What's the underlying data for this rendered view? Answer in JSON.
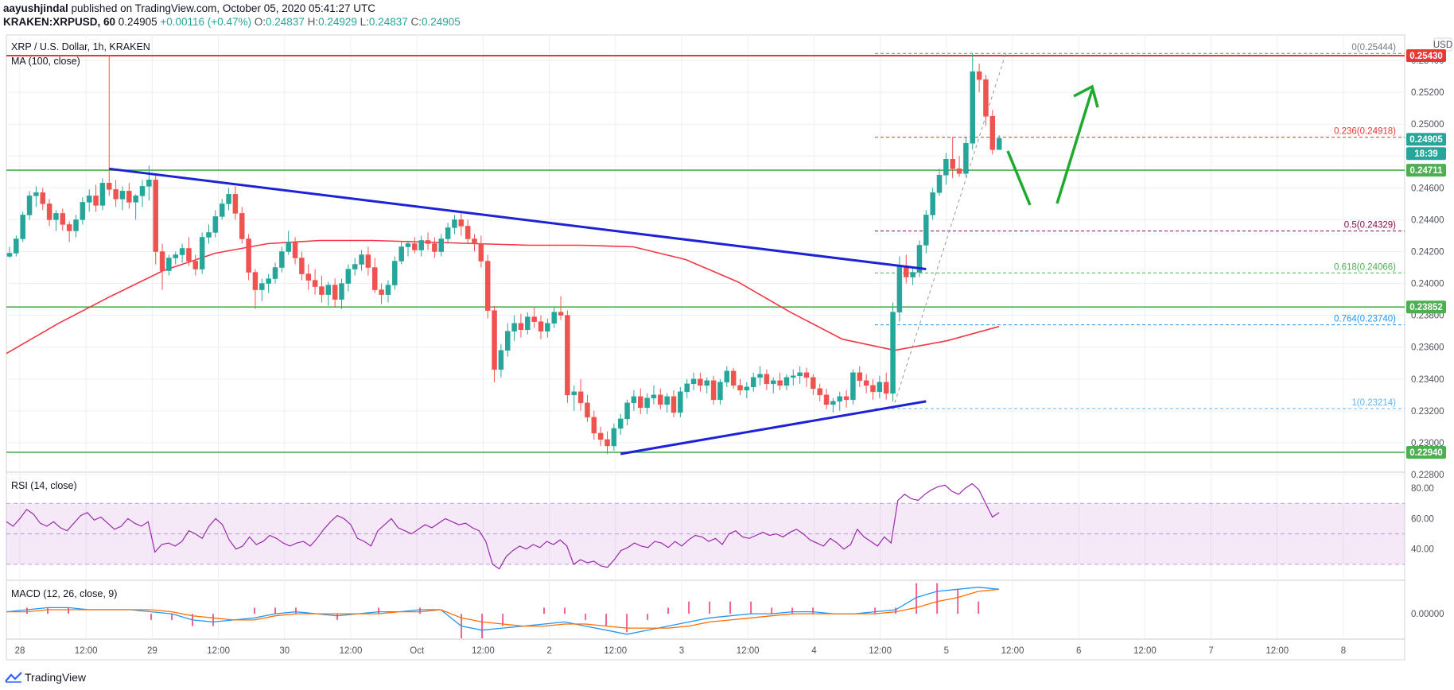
{
  "header": {
    "author": "aayushjindal",
    "published": "published on TradingView.com, October 05, 2020 05:41:27 UTC",
    "symbol": "KRAKEN:XRPUSD, 60",
    "last": "0.24905",
    "change": "+0.00116 (+0.47%)",
    "ohlc": [
      {
        "k": "O:",
        "v": "0.24837"
      },
      {
        "k": "H:",
        "v": "0.24929"
      },
      {
        "k": "L:",
        "v": "0.24837"
      },
      {
        "k": "C:",
        "v": "0.24905"
      }
    ]
  },
  "pane_titles": {
    "main": "XRP / U.S. Dollar, 1h, KRAKEN",
    "ma": "MA (100, close)",
    "rsi": "RSI (14, close)",
    "macd": "MACD (12, 26, close, 9)"
  },
  "currency_button": "USD",
  "countdown": "18:39",
  "footer_brand": "TradingView",
  "chart_data": {
    "type": "candlestick",
    "symbol": "XRP / U.S. Dollar",
    "timeframe": "1h",
    "x_ticks": [
      "28",
      "12:00",
      "29",
      "12:00",
      "30",
      "12:00",
      "Oct",
      "12:00",
      "2",
      "12:00",
      "3",
      "12:00",
      "4",
      "12:00",
      "5",
      "12:00",
      "6",
      "12:00",
      "7",
      "12:00",
      "8"
    ],
    "y_ticks": [
      "0.25400",
      "0.25200",
      "0.25000",
      "0.24800",
      "0.24600",
      "0.24400",
      "0.24200",
      "0.24000",
      "0.23800",
      "0.23600",
      "0.23400",
      "0.23200",
      "0.23000",
      "0.22800"
    ],
    "y_range": [
      0.2282,
      0.2556
    ],
    "price_tags": [
      {
        "value": "0.25430",
        "color": "#e53935"
      },
      {
        "value": "0.24905",
        "color": "#26a69a"
      },
      {
        "value": "0.24711",
        "color": "#4caf50"
      },
      {
        "value": "0.23852",
        "color": "#4caf50"
      },
      {
        "value": "0.22940",
        "color": "#4caf50"
      }
    ],
    "horizontal_lines": [
      {
        "price": 0.2543,
        "color": "#e53935"
      },
      {
        "price": 0.24711,
        "color": "#4caf50"
      },
      {
        "price": 0.23852,
        "color": "#4caf50"
      },
      {
        "price": 0.2294,
        "color": "#4caf50"
      }
    ],
    "fibonacci": [
      {
        "ratio": "0",
        "price": "0.25444",
        "label": "0(0.25444)",
        "color": "#787b86"
      },
      {
        "ratio": "0.236",
        "price": "0.24918",
        "label": "0.236(0.24918)",
        "color": "#e53935"
      },
      {
        "ratio": "0.5",
        "price": "0.24329",
        "label": "0.5(0.24329)",
        "color": "#880e4f"
      },
      {
        "ratio": "0.618",
        "price": "0.24066",
        "label": "0.618(0.24066)",
        "color": "#4caf50"
      },
      {
        "ratio": "0.764",
        "price": "0.23740",
        "label": "0.764(0.23740)",
        "color": "#2196f3"
      },
      {
        "ratio": "1",
        "price": "0.23214",
        "label": "1(0.23214)",
        "color": "#64b5f6"
      }
    ],
    "trendlines": [
      {
        "name": "bearish trend line",
        "from": {
          "bar": 15,
          "price": 0.2472
        },
        "to": {
          "bar": 138,
          "price": 0.2409
        }
      },
      {
        "name": "bullish trend line",
        "from": {
          "bar": 92,
          "price": 0.2293
        },
        "to": {
          "bar": 138,
          "price": 0.2326
        }
      }
    ],
    "candles": [
      [
        0.2417,
        0.2423,
        0.2416,
        0.2419
      ],
      [
        0.2419,
        0.243,
        0.2417,
        0.2428
      ],
      [
        0.2428,
        0.2445,
        0.2426,
        0.2443
      ],
      [
        0.2443,
        0.2458,
        0.244,
        0.2455
      ],
      [
        0.2455,
        0.2461,
        0.2448,
        0.2457
      ],
      [
        0.2457,
        0.246,
        0.2446,
        0.245
      ],
      [
        0.245,
        0.2453,
        0.2436,
        0.244
      ],
      [
        0.244,
        0.2446,
        0.2433,
        0.2444
      ],
      [
        0.2444,
        0.2447,
        0.2433,
        0.2437
      ],
      [
        0.2437,
        0.2439,
        0.2426,
        0.2433
      ],
      [
        0.2433,
        0.2443,
        0.2429,
        0.244
      ],
      [
        0.244,
        0.2454,
        0.2437,
        0.2451
      ],
      [
        0.2451,
        0.2459,
        0.2445,
        0.2455
      ],
      [
        0.2455,
        0.2462,
        0.2445,
        0.2449
      ],
      [
        0.2449,
        0.2466,
        0.2446,
        0.2463
      ],
      [
        0.2463,
        0.2543,
        0.2455,
        0.2459
      ],
      [
        0.2459,
        0.2465,
        0.2448,
        0.2453
      ],
      [
        0.2453,
        0.2461,
        0.2446,
        0.2458
      ],
      [
        0.2458,
        0.2463,
        0.2447,
        0.2451
      ],
      [
        0.2451,
        0.2456,
        0.244,
        0.2455
      ],
      [
        0.2455,
        0.2465,
        0.2448,
        0.2461
      ],
      [
        0.2461,
        0.2474,
        0.2452,
        0.2465
      ],
      [
        0.2465,
        0.2468,
        0.2412,
        0.242
      ],
      [
        0.242,
        0.2425,
        0.2396,
        0.2408
      ],
      [
        0.2408,
        0.2418,
        0.2405,
        0.2416
      ],
      [
        0.2416,
        0.242,
        0.2412,
        0.2418
      ],
      [
        0.2418,
        0.2425,
        0.2413,
        0.2422
      ],
      [
        0.2422,
        0.2429,
        0.2411,
        0.2414
      ],
      [
        0.2414,
        0.2418,
        0.2405,
        0.2409
      ],
      [
        0.2409,
        0.2432,
        0.2406,
        0.2429
      ],
      [
        0.2429,
        0.2437,
        0.2425,
        0.2432
      ],
      [
        0.2432,
        0.2446,
        0.2429,
        0.2442
      ],
      [
        0.2442,
        0.2453,
        0.244,
        0.245
      ],
      [
        0.245,
        0.246,
        0.2446,
        0.2456
      ],
      [
        0.2456,
        0.2461,
        0.244,
        0.2444
      ],
      [
        0.2444,
        0.2448,
        0.2425,
        0.2428
      ],
      [
        0.2428,
        0.2431,
        0.2402,
        0.2407
      ],
      [
        0.2407,
        0.2409,
        0.2384,
        0.2396
      ],
      [
        0.2396,
        0.2403,
        0.2389,
        0.24
      ],
      [
        0.24,
        0.2406,
        0.2394,
        0.2403
      ],
      [
        0.2403,
        0.2413,
        0.24,
        0.241
      ],
      [
        0.241,
        0.2423,
        0.2407,
        0.242
      ],
      [
        0.242,
        0.2433,
        0.2418,
        0.2426
      ],
      [
        0.2426,
        0.2429,
        0.2412,
        0.2416
      ],
      [
        0.2416,
        0.242,
        0.2402,
        0.2406
      ],
      [
        0.2406,
        0.2412,
        0.2396,
        0.2402
      ],
      [
        0.2402,
        0.2409,
        0.2393,
        0.2398
      ],
      [
        0.2398,
        0.2405,
        0.2388,
        0.2393
      ],
      [
        0.2393,
        0.2401,
        0.2386,
        0.2399
      ],
      [
        0.2399,
        0.2403,
        0.2385,
        0.239
      ],
      [
        0.239,
        0.2403,
        0.2384,
        0.24
      ],
      [
        0.24,
        0.2412,
        0.2395,
        0.2409
      ],
      [
        0.2409,
        0.2416,
        0.2405,
        0.2412
      ],
      [
        0.2412,
        0.2421,
        0.2408,
        0.2418
      ],
      [
        0.2418,
        0.2423,
        0.2405,
        0.241
      ],
      [
        0.241,
        0.2416,
        0.2394,
        0.2396
      ],
      [
        0.2396,
        0.24,
        0.2387,
        0.2393
      ],
      [
        0.2393,
        0.2402,
        0.2388,
        0.2399
      ],
      [
        0.2399,
        0.2417,
        0.2396,
        0.2414
      ],
      [
        0.2414,
        0.2426,
        0.2412,
        0.2423
      ],
      [
        0.2423,
        0.2427,
        0.2417,
        0.2425
      ],
      [
        0.2425,
        0.2429,
        0.2419,
        0.2421
      ],
      [
        0.2421,
        0.243,
        0.2417,
        0.2427
      ],
      [
        0.2427,
        0.2432,
        0.2421,
        0.2425
      ],
      [
        0.2425,
        0.2429,
        0.2416,
        0.242
      ],
      [
        0.242,
        0.2431,
        0.2417,
        0.2428
      ],
      [
        0.2428,
        0.2438,
        0.2425,
        0.2435
      ],
      [
        0.2435,
        0.2443,
        0.2431,
        0.244
      ],
      [
        0.244,
        0.2444,
        0.243,
        0.2436
      ],
      [
        0.2436,
        0.244,
        0.2425,
        0.2428
      ],
      [
        0.2428,
        0.2431,
        0.242,
        0.2425
      ],
      [
        0.2425,
        0.243,
        0.241,
        0.2414
      ],
      [
        0.2414,
        0.2418,
        0.2378,
        0.2383
      ],
      [
        0.2383,
        0.2386,
        0.2338,
        0.2346
      ],
      [
        0.2346,
        0.2362,
        0.2341,
        0.2358
      ],
      [
        0.2358,
        0.2375,
        0.2354,
        0.237
      ],
      [
        0.237,
        0.238,
        0.2364,
        0.2375
      ],
      [
        0.2375,
        0.2381,
        0.2366,
        0.2371
      ],
      [
        0.2371,
        0.2382,
        0.2368,
        0.2379
      ],
      [
        0.2379,
        0.2385,
        0.2372,
        0.2376
      ],
      [
        0.2376,
        0.238,
        0.2365,
        0.237
      ],
      [
        0.237,
        0.2378,
        0.2366,
        0.2375
      ],
      [
        0.2375,
        0.2385,
        0.2372,
        0.2382
      ],
      [
        0.2382,
        0.2392,
        0.2377,
        0.238
      ],
      [
        0.238,
        0.2383,
        0.2325,
        0.233
      ],
      [
        0.233,
        0.2336,
        0.232,
        0.2332
      ],
      [
        0.2332,
        0.234,
        0.232,
        0.2325
      ],
      [
        0.2325,
        0.233,
        0.2313,
        0.2316
      ],
      [
        0.2316,
        0.232,
        0.2302,
        0.2306
      ],
      [
        0.2306,
        0.231,
        0.2298,
        0.2302
      ],
      [
        0.2302,
        0.2307,
        0.2293,
        0.2298
      ],
      [
        0.2298,
        0.2312,
        0.2295,
        0.2309
      ],
      [
        0.2309,
        0.2318,
        0.2305,
        0.2315
      ],
      [
        0.2315,
        0.2327,
        0.2311,
        0.2325
      ],
      [
        0.2325,
        0.2333,
        0.232,
        0.2329
      ],
      [
        0.2329,
        0.2334,
        0.2318,
        0.2322
      ],
      [
        0.2322,
        0.2331,
        0.2318,
        0.2328
      ],
      [
        0.2328,
        0.2336,
        0.2324,
        0.233
      ],
      [
        0.233,
        0.2334,
        0.2321,
        0.2324
      ],
      [
        0.2324,
        0.2331,
        0.2319,
        0.2329
      ],
      [
        0.2329,
        0.2333,
        0.2316,
        0.2319
      ],
      [
        0.2319,
        0.2335,
        0.2316,
        0.2332
      ],
      [
        0.2332,
        0.234,
        0.2328,
        0.2337
      ],
      [
        0.2337,
        0.2344,
        0.2333,
        0.234
      ],
      [
        0.234,
        0.2344,
        0.2332,
        0.2336
      ],
      [
        0.2336,
        0.2341,
        0.2331,
        0.2339
      ],
      [
        0.2339,
        0.2342,
        0.2324,
        0.2327
      ],
      [
        0.2327,
        0.234,
        0.2324,
        0.2338
      ],
      [
        0.2338,
        0.2348,
        0.2335,
        0.2345
      ],
      [
        0.2345,
        0.2347,
        0.2334,
        0.2336
      ],
      [
        0.2336,
        0.234,
        0.233,
        0.2333
      ],
      [
        0.2333,
        0.2338,
        0.2328,
        0.2335
      ],
      [
        0.2335,
        0.2344,
        0.2332,
        0.2341
      ],
      [
        0.2341,
        0.2348,
        0.2336,
        0.2343
      ],
      [
        0.2343,
        0.2346,
        0.2333,
        0.2337
      ],
      [
        0.2337,
        0.2341,
        0.2331,
        0.2339
      ],
      [
        0.2339,
        0.2344,
        0.2333,
        0.2336
      ],
      [
        0.2336,
        0.2343,
        0.2333,
        0.2341
      ],
      [
        0.2341,
        0.2346,
        0.2336,
        0.2342
      ],
      [
        0.2342,
        0.2348,
        0.2337,
        0.2344
      ],
      [
        0.2344,
        0.2347,
        0.2335,
        0.2341
      ],
      [
        0.2341,
        0.2343,
        0.233,
        0.2334
      ],
      [
        0.2334,
        0.2337,
        0.2326,
        0.233
      ],
      [
        0.233,
        0.2334,
        0.2321,
        0.2324
      ],
      [
        0.2324,
        0.2328,
        0.2319,
        0.2326
      ],
      [
        0.2326,
        0.2332,
        0.232,
        0.2329
      ],
      [
        0.2329,
        0.2333,
        0.2322,
        0.2327
      ],
      [
        0.2327,
        0.2346,
        0.2324,
        0.2344
      ],
      [
        0.2344,
        0.2348,
        0.2335,
        0.2339
      ],
      [
        0.2339,
        0.2343,
        0.2331,
        0.2336
      ],
      [
        0.2336,
        0.234,
        0.2327,
        0.2332
      ],
      [
        0.2332,
        0.2342,
        0.2328,
        0.2338
      ],
      [
        0.2338,
        0.2344,
        0.2327,
        0.2331
      ],
      [
        0.2331,
        0.2388,
        0.2326,
        0.2382
      ],
      [
        0.2382,
        0.2417,
        0.2376,
        0.2411
      ],
      [
        0.2411,
        0.2418,
        0.24,
        0.2404
      ],
      [
        0.2404,
        0.241,
        0.2399,
        0.2407
      ],
      [
        0.2407,
        0.2427,
        0.2404,
        0.2424
      ],
      [
        0.2424,
        0.2446,
        0.2419,
        0.2443
      ],
      [
        0.2443,
        0.246,
        0.244,
        0.2457
      ],
      [
        0.2457,
        0.2472,
        0.2455,
        0.2468
      ],
      [
        0.2468,
        0.2482,
        0.2462,
        0.2478
      ],
      [
        0.2478,
        0.2492,
        0.2466,
        0.2472
      ],
      [
        0.2472,
        0.248,
        0.2467,
        0.2469
      ],
      [
        0.2469,
        0.2492,
        0.2467,
        0.2488
      ],
      [
        0.2488,
        0.2544,
        0.2484,
        0.2533
      ],
      [
        0.2533,
        0.2538,
        0.252,
        0.2528
      ],
      [
        0.2528,
        0.2531,
        0.2499,
        0.2505
      ],
      [
        0.2505,
        0.2509,
        0.2481,
        0.2484
      ],
      [
        0.2484,
        0.2493,
        0.2484,
        0.2491
      ]
    ],
    "ma100": {
      "name": "MA (100, close)",
      "color": "#f23645",
      "values": [
        0.2356,
        0.2375,
        0.2392,
        0.2408,
        0.2419,
        0.2425,
        0.2427,
        0.2427,
        0.2426,
        0.2425,
        0.2424,
        0.2424,
        0.2423,
        0.2415,
        0.2401,
        0.2382,
        0.2365,
        0.2358,
        0.2364,
        0.2373
      ]
    },
    "rsi": {
      "name": "RSI (14, close)",
      "color": "#9c27b0",
      "range": [
        20,
        90
      ],
      "ticks": [
        "80.00",
        "60.00",
        "40.00"
      ],
      "band": [
        30,
        70
      ],
      "values": [
        58,
        55,
        60,
        66,
        63,
        57,
        55,
        58,
        54,
        52,
        57,
        62,
        64,
        59,
        61,
        57,
        53,
        55,
        60,
        57,
        55,
        58,
        38,
        43,
        44,
        42,
        45,
        52,
        50,
        47,
        55,
        60,
        56,
        46,
        40,
        42,
        48,
        43,
        45,
        49,
        47,
        44,
        42,
        44,
        45,
        42,
        47,
        53,
        58,
        62,
        60,
        56,
        47,
        45,
        42,
        52,
        56,
        60,
        54,
        52,
        50,
        53,
        56,
        54,
        57,
        60,
        58,
        56,
        57,
        54,
        52,
        45,
        30,
        27,
        35,
        39,
        42,
        40,
        43,
        41,
        45,
        43,
        46,
        42,
        30,
        33,
        31,
        32,
        29,
        28,
        33,
        39,
        41,
        44,
        42,
        41,
        45,
        44,
        41,
        45,
        42,
        46,
        49,
        48,
        45,
        47,
        43,
        50,
        52,
        48,
        47,
        49,
        51,
        49,
        50,
        48,
        51,
        53,
        50,
        46,
        44,
        42,
        47,
        44,
        40,
        43,
        53,
        48,
        45,
        42,
        48,
        44,
        72,
        76,
        73,
        72,
        76,
        79,
        81,
        82,
        78,
        76,
        80,
        83,
        79,
        70,
        61,
        64
      ]
    },
    "macd": {
      "name": "MACD (12, 26, close, 9)",
      "range": [
        -0.0012,
        0.0016
      ],
      "ticks": [
        "0.00000"
      ],
      "macd_color": "#2196f3",
      "signal_color": "#ff6d00",
      "macd_values": [
        0.0001,
        0.0002,
        0.0003,
        0.0003,
        0.0002,
        0.0002,
        0.0002,
        0.0001,
        0.0,
        -0.0003,
        -0.0004,
        -0.0003,
        -0.0002,
        0.0,
        0.0001,
        0.0,
        -0.0001,
        0.0,
        0.0001,
        0.0001,
        0.0002,
        0.0002,
        -0.0006,
        -0.0008,
        -0.0007,
        -0.0006,
        -0.0005,
        -0.0004,
        -0.0006,
        -0.0008,
        -0.001,
        -0.0008,
        -0.0006,
        -0.0004,
        -0.0002,
        -0.0001,
        0.0,
        0.0,
        0.0001,
        0.0001,
        0.0,
        0.0,
        0.0001,
        0.0002,
        0.0008,
        0.0011,
        0.0012,
        0.0013,
        0.0012
      ],
      "signal_values": [
        0.0001,
        0.0001,
        0.0002,
        0.0002,
        0.0002,
        0.0002,
        0.0002,
        0.0002,
        0.0001,
        -0.0001,
        -0.0002,
        -0.0003,
        -0.0003,
        -0.0001,
        0.0,
        0.0,
        0.0,
        0.0,
        0.0,
        0.0001,
        0.0001,
        0.0002,
        -0.0002,
        -0.0004,
        -0.0005,
        -0.0006,
        -0.0006,
        -0.0005,
        -0.0005,
        -0.0006,
        -0.0007,
        -0.0007,
        -0.0007,
        -0.0006,
        -0.0004,
        -0.0003,
        -0.0002,
        -0.0001,
        0.0,
        0.0,
        0.0,
        0.0,
        0.0,
        0.0001,
        0.0003,
        0.0006,
        0.0008,
        0.0011,
        0.0012
      ]
    }
  }
}
